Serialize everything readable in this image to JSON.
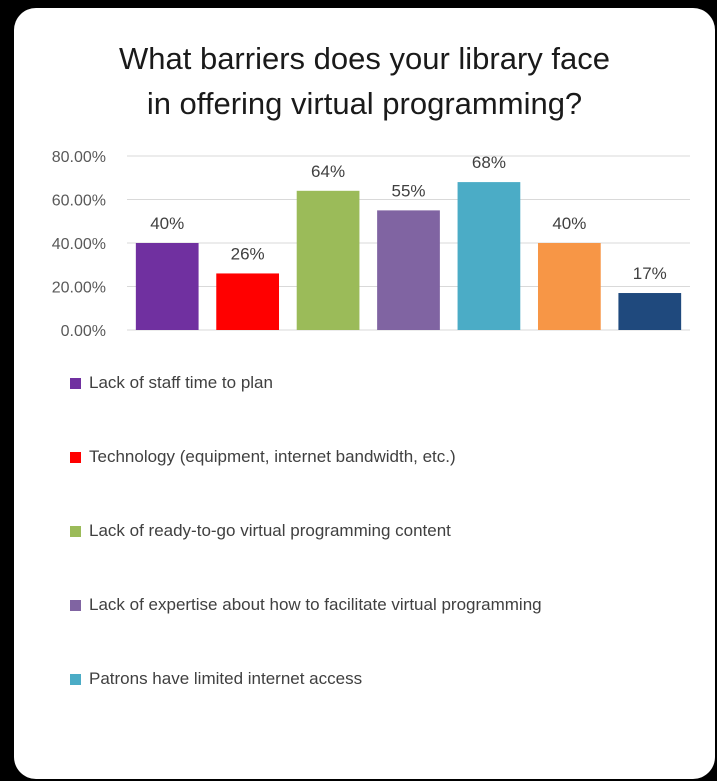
{
  "chart_data": {
    "type": "bar",
    "title": "What barriers does your library face in offering virtual programming?",
    "title_lines": [
      "What barriers does your library face",
      "in offering virtual programming?"
    ],
    "ylim": [
      0,
      80
    ],
    "yticks": [
      0,
      20,
      40,
      60,
      80
    ],
    "ytick_labels": [
      "0.00%",
      "20.00%",
      "40.00%",
      "60.00%",
      "80.00%"
    ],
    "grid": true,
    "legend_position": "bottom",
    "series": [
      {
        "name": "Lack of staff time to plan",
        "value": 40,
        "label": "40%",
        "color": "#7030a0"
      },
      {
        "name": "Technology (equipment, internet bandwidth, etc.)",
        "value": 26,
        "label": "26%",
        "color": "#ff0000"
      },
      {
        "name": "Lack of ready-to-go virtual programming content",
        "value": 64,
        "label": "64%",
        "color": "#9bbb59"
      },
      {
        "name": "Lack of expertise about how to facilitate virtual programming",
        "value": 55,
        "label": "55%",
        "color": "#8064a2"
      },
      {
        "name": "Patrons have limited internet access",
        "value": 68,
        "label": "68%",
        "color": "#4bacc6"
      },
      {
        "name": "",
        "value": 40,
        "label": "40%",
        "color": "#f79646"
      },
      {
        "name": "",
        "value": 17,
        "label": "17%",
        "color": "#1f497d"
      }
    ]
  }
}
